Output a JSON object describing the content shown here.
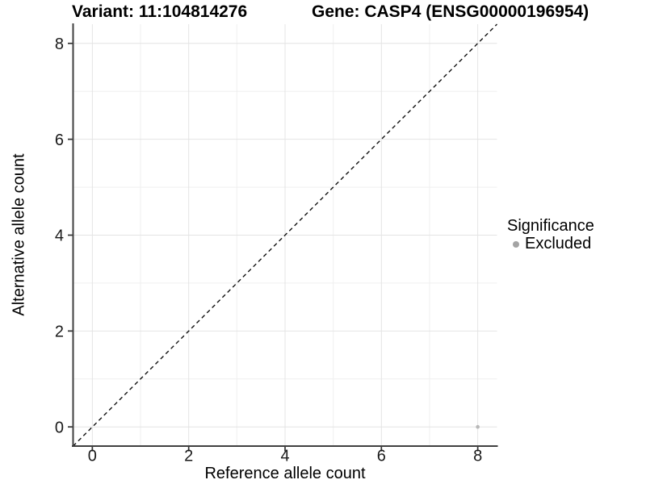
{
  "titles": {
    "variant": "Variant: 11:104814276",
    "gene": "Gene: CASP4 (ENSG00000196954)"
  },
  "axes": {
    "x": {
      "label": "Reference allele count"
    },
    "y": {
      "label": "Alternative allele count"
    }
  },
  "legend": {
    "title": "Significance",
    "items": [
      {
        "label": "Excluded",
        "color": "#a4a4a4"
      }
    ]
  },
  "chart_data": {
    "type": "scatter",
    "title": "Variant: 11:104814276   Gene: CASP4 (ENSG00000196954)",
    "xlabel": "Reference allele count",
    "ylabel": "Alternative allele count",
    "xlim": [
      -0.4,
      8.4
    ],
    "ylim": [
      -0.4,
      8.4
    ],
    "x_ticks": [
      0,
      2,
      4,
      6,
      8
    ],
    "y_ticks": [
      0,
      2,
      4,
      6,
      8
    ],
    "x_minor_gridlines": [
      1,
      3,
      5,
      7
    ],
    "y_minor_gridlines": [
      1,
      3,
      5,
      7
    ],
    "grid": true,
    "legend_position": "right",
    "legend_title": "Significance",
    "series": [
      {
        "name": "Excluded",
        "color": "#b8b8b8",
        "points": [
          {
            "x": 8,
            "y": 0
          }
        ]
      }
    ],
    "reference_line": {
      "type": "abline",
      "slope": 1,
      "intercept": 0,
      "style": "dashed",
      "color": "#111111"
    }
  },
  "colors": {
    "grid_major": "#e4e4e4",
    "grid_minor": "#efefef",
    "axis_line": "#404040",
    "tick_mark": "#333333",
    "tick_text": "#1a1a1a",
    "point": "#b8b8b8",
    "legend_dot": "#a4a4a4"
  }
}
